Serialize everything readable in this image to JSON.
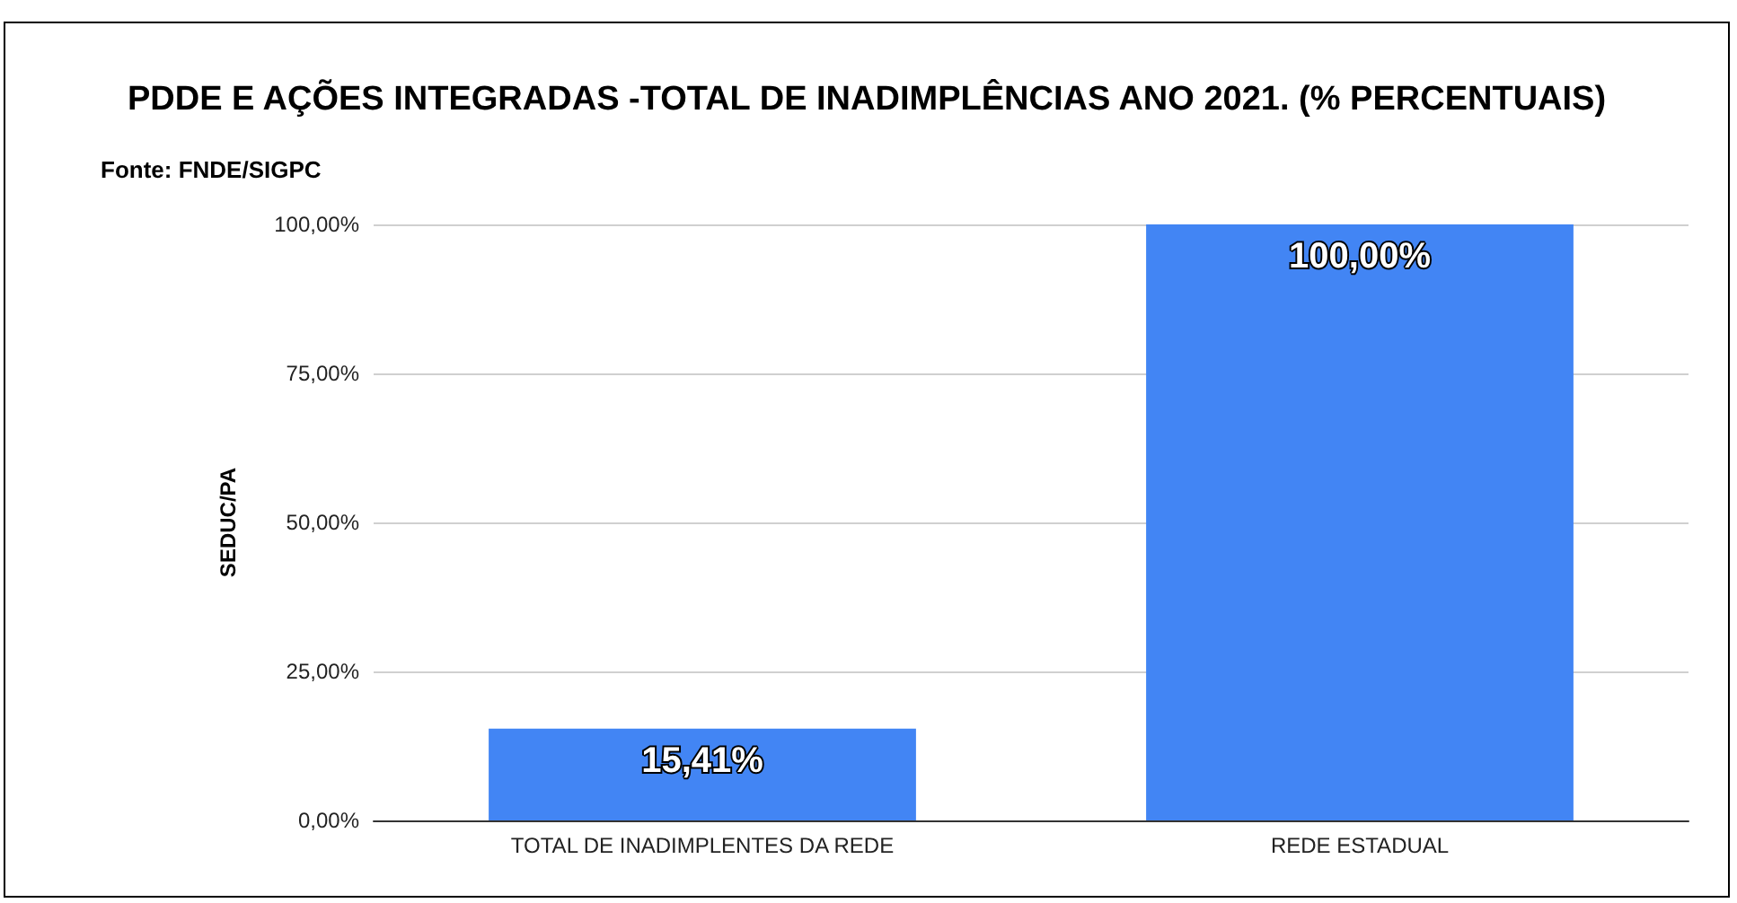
{
  "chart_data": {
    "type": "bar",
    "title": "PDDE E AÇÕES INTEGRADAS -TOTAL DE INADIMPLÊNCIAS ANO 2021. (% PERCENTUAIS)",
    "subtitle": "Fonte: FNDE/SIGPC",
    "ylabel": "SEDUC/PA",
    "categories": [
      "TOTAL DE INADIMPLENTES DA REDE",
      "REDE ESTADUAL"
    ],
    "values": [
      15.41,
      100
    ],
    "value_labels": [
      "15,41%",
      "100,00%"
    ],
    "color": "#4285f4",
    "ylim": [
      0,
      100
    ],
    "yticks": [
      {
        "value": 0,
        "label": "0,00%"
      },
      {
        "value": 25,
        "label": "25,00%"
      },
      {
        "value": 50,
        "label": "50,00%"
      },
      {
        "value": 75,
        "label": "75,00%"
      },
      {
        "value": 100,
        "label": "100,00%"
      }
    ],
    "grid": "y"
  }
}
